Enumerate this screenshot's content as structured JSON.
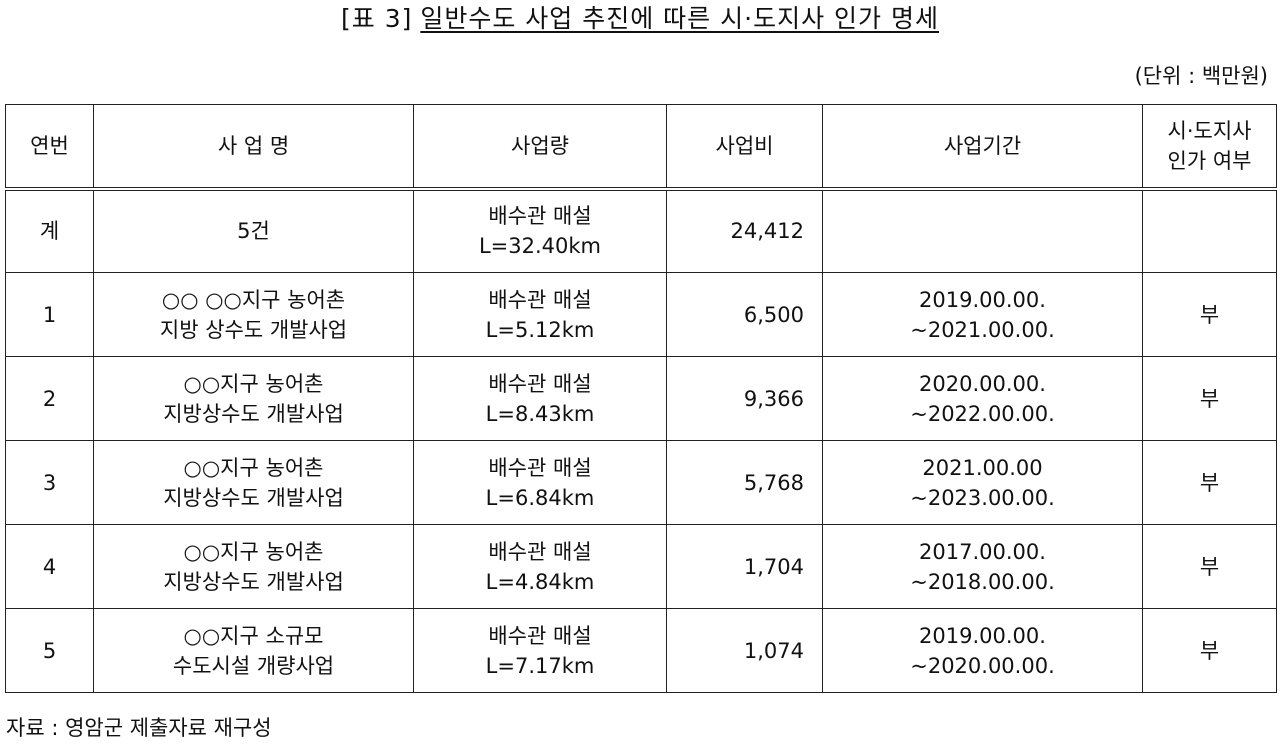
{
  "title": {
    "label": "[표 3]",
    "main": "일반수도 사업 추진에 따른 시·도지사 인가 명세"
  },
  "unit": "(단위 : 백만원)",
  "headers": {
    "no": "연번",
    "name": "사 업 명",
    "volume": "사업량",
    "cost": "사업비",
    "period": "사업기간",
    "approval_line1": "시·도지사",
    "approval_line2": "인가 여부"
  },
  "rows": [
    {
      "no": "계",
      "name": [
        "5건",
        ""
      ],
      "volume": [
        "배수관 매설",
        "L=32.40km"
      ],
      "cost": "24,412",
      "period": [
        "",
        ""
      ],
      "approval": ""
    },
    {
      "no": "1",
      "name": [
        "○○ ○○지구 농어촌",
        "지방 상수도 개발사업"
      ],
      "volume": [
        "배수관 매설",
        "L=5.12km"
      ],
      "cost": "6,500",
      "period": [
        "2019.00.00.",
        "~2021.00.00."
      ],
      "approval": "부"
    },
    {
      "no": "2",
      "name": [
        "○○지구 농어촌",
        "지방상수도 개발사업"
      ],
      "volume": [
        "배수관 매설",
        "L=8.43km"
      ],
      "cost": "9,366",
      "period": [
        "2020.00.00.",
        "~2022.00.00."
      ],
      "approval": "부"
    },
    {
      "no": "3",
      "name": [
        "○○지구 농어촌",
        "지방상수도 개발사업"
      ],
      "volume": [
        "배수관 매설",
        "L=6.84km"
      ],
      "cost": "5,768",
      "period": [
        "2021.00.00",
        "~2023.00.00."
      ],
      "approval": "부"
    },
    {
      "no": "4",
      "name": [
        "○○지구 농어촌",
        "지방상수도 개발사업"
      ],
      "volume": [
        "배수관 매설",
        "L=4.84km"
      ],
      "cost": "1,704",
      "period": [
        "2017.00.00.",
        "~2018.00.00."
      ],
      "approval": "부"
    },
    {
      "no": "5",
      "name": [
        "○○지구 소규모",
        "수도시설 개량사업"
      ],
      "volume": [
        "배수관 매설",
        "L=7.17km"
      ],
      "cost": "1,074",
      "period": [
        "2019.00.00.",
        "~2020.00.00."
      ],
      "approval": "부"
    }
  ],
  "source": "자료 : 영암군 제출자료 재구성"
}
